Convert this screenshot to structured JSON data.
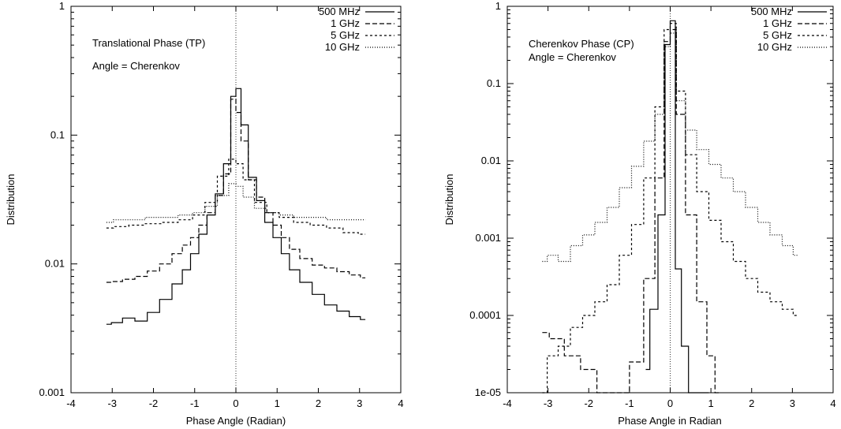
{
  "chart_data": [
    {
      "type": "line",
      "step": true,
      "xlabel": "Phase Angle (Radian)",
      "ylabel": "Distribution",
      "xlim": [
        -4,
        4
      ],
      "ylim": [
        0.001,
        1
      ],
      "yscale": "log",
      "xticks": [
        "-4",
        "-3",
        "-2",
        "-1",
        "0",
        "1",
        "2",
        "3",
        "4"
      ],
      "yticks": [
        {
          "v": 0.001,
          "label": "0.001"
        },
        {
          "v": 0.01,
          "label": "0.01"
        },
        {
          "v": 0.1,
          "label": "0.1"
        },
        {
          "v": 1,
          "label": "1"
        }
      ],
      "vertical_line_at": 0,
      "legend_position": "top-right",
      "annotations": [
        "Translational Phase (TP)",
        "Angle = Cherenkov"
      ],
      "series": [
        {
          "name": "500 MHz",
          "dash": "",
          "x": [
            -3.14,
            -2.9,
            -2.6,
            -2.3,
            -2.0,
            -1.7,
            -1.4,
            -1.2,
            -1.0,
            -0.8,
            -0.6,
            -0.4,
            -0.2,
            -0.05,
            0.05,
            0.2,
            0.4,
            0.6,
            0.8,
            1.0,
            1.2,
            1.4,
            1.7,
            2.0,
            2.3,
            2.6,
            2.9,
            3.14
          ],
          "y": [
            0.0034,
            0.0035,
            0.0038,
            0.0036,
            0.0042,
            0.0053,
            0.007,
            0.009,
            0.012,
            0.017,
            0.024,
            0.035,
            0.06,
            0.2,
            0.23,
            0.12,
            0.047,
            0.031,
            0.021,
            0.016,
            0.012,
            0.009,
            0.0072,
            0.0058,
            0.0048,
            0.0043,
            0.0039,
            0.0037
          ]
        },
        {
          "name": "1 GHz",
          "dash": "6,3",
          "x": [
            -3.14,
            -2.9,
            -2.6,
            -2.3,
            -2.0,
            -1.7,
            -1.4,
            -1.2,
            -1.0,
            -0.8,
            -0.6,
            -0.4,
            -0.2,
            -0.05,
            0.05,
            0.2,
            0.4,
            0.6,
            0.8,
            1.0,
            1.2,
            1.4,
            1.7,
            2.0,
            2.3,
            2.6,
            2.9,
            3.14
          ],
          "y": [
            0.0072,
            0.0073,
            0.0076,
            0.008,
            0.0088,
            0.01,
            0.012,
            0.014,
            0.016,
            0.02,
            0.025,
            0.034,
            0.05,
            0.19,
            0.15,
            0.09,
            0.045,
            0.033,
            0.025,
            0.02,
            0.016,
            0.013,
            0.011,
            0.0098,
            0.0093,
            0.0087,
            0.0082,
            0.0078
          ]
        },
        {
          "name": "5 GHz",
          "dash": "3,3",
          "x": [
            -3.14,
            -2.8,
            -2.4,
            -2.0,
            -1.6,
            -1.2,
            -0.9,
            -0.6,
            -0.3,
            -0.05,
            0.05,
            0.3,
            0.6,
            0.9,
            1.2,
            1.6,
            2.0,
            2.4,
            2.8,
            3.14
          ],
          "y": [
            0.019,
            0.0195,
            0.02,
            0.0205,
            0.021,
            0.022,
            0.024,
            0.03,
            0.048,
            0.065,
            0.06,
            0.045,
            0.03,
            0.025,
            0.023,
            0.021,
            0.02,
            0.019,
            0.0175,
            0.017
          ]
        },
        {
          "name": "10 GHz",
          "dash": "1,2",
          "x": [
            -3.14,
            -2.8,
            -2.4,
            -2.0,
            -1.6,
            -1.2,
            -0.9,
            -0.6,
            -0.3,
            -0.05,
            0.05,
            0.3,
            0.6,
            0.9,
            1.2,
            1.6,
            2.0,
            2.4,
            2.8,
            3.14
          ],
          "y": [
            0.021,
            0.022,
            0.022,
            0.023,
            0.023,
            0.024,
            0.025,
            0.028,
            0.034,
            0.042,
            0.04,
            0.033,
            0.027,
            0.025,
            0.024,
            0.023,
            0.023,
            0.022,
            0.022,
            0.022
          ]
        }
      ]
    },
    {
      "type": "line",
      "step": true,
      "xlabel": "Phase Angle in Radian",
      "ylabel": "Distribution",
      "xlim": [
        -4,
        4
      ],
      "ylim": [
        1e-05,
        1
      ],
      "yscale": "log",
      "xticks": [
        "-4",
        "-3",
        "-2",
        "-1",
        "0",
        "1",
        "2",
        "3",
        "4"
      ],
      "yticks": [
        {
          "v": 1e-05,
          "label": "1e-05"
        },
        {
          "v": 0.0001,
          "label": "0.0001"
        },
        {
          "v": 0.001,
          "label": "0.001"
        },
        {
          "v": 0.01,
          "label": "0.01"
        },
        {
          "v": 0.1,
          "label": "0.1"
        },
        {
          "v": 1,
          "label": "1"
        }
      ],
      "vertical_line_at": 0,
      "legend_position": "top-right",
      "annotations": [
        "Cherenkov Phase (CP)",
        "Angle = Cherenkov"
      ],
      "series": [
        {
          "name": "500 MHz",
          "dash": "",
          "x": [
            -0.6,
            -0.4,
            -0.2,
            -0.05,
            0.05,
            0.2,
            0.35,
            0.55,
            0.75,
            0.95
          ],
          "y": [
            2e-05,
            0.00012,
            0.002,
            0.32,
            0.65,
            0.0004,
            4e-05,
            1e-05,
            1e-05,
            1e-05
          ]
        },
        {
          "name": "1 GHz",
          "dash": "6,3",
          "x": [
            -3.14,
            -2.8,
            -2.4,
            -2.0,
            -1.6,
            -1.2,
            -0.8,
            -0.5,
            -0.25,
            -0.05,
            0.05,
            0.25,
            0.5,
            0.8,
            1.0,
            1.2
          ],
          "y": [
            6e-05,
            5e-05,
            3e-05,
            2e-05,
            1e-05,
            1e-05,
            2.5e-05,
            0.0003,
            0.006,
            0.35,
            0.5,
            0.04,
            0.002,
            0.00015,
            3e-05,
            1e-05
          ]
        },
        {
          "name": "5 GHz",
          "dash": "3,3",
          "x": [
            -3.14,
            -2.9,
            -2.6,
            -2.3,
            -2.0,
            -1.7,
            -1.4,
            -1.1,
            -0.8,
            -0.5,
            -0.25,
            -0.05,
            0.05,
            0.25,
            0.5,
            0.8,
            1.1,
            1.4,
            1.7,
            2.0,
            2.3,
            2.6,
            2.9,
            3.14
          ],
          "y": [
            1e-05,
            3e-05,
            4e-05,
            7e-05,
            0.0001,
            0.00015,
            0.00025,
            0.0006,
            0.0015,
            0.006,
            0.05,
            0.5,
            0.6,
            0.08,
            0.012,
            0.004,
            0.0017,
            0.0009,
            0.0005,
            0.0003,
            0.0002,
            0.00015,
            0.00012,
            0.0001
          ]
        },
        {
          "name": "10 GHz",
          "dash": "1,2",
          "x": [
            -3.14,
            -2.9,
            -2.6,
            -2.3,
            -2.0,
            -1.7,
            -1.4,
            -1.1,
            -0.8,
            -0.5,
            -0.25,
            -0.05,
            0.05,
            0.25,
            0.5,
            0.8,
            1.1,
            1.4,
            1.7,
            2.0,
            2.3,
            2.6,
            2.9,
            3.14
          ],
          "y": [
            0.0005,
            0.0006,
            0.0005,
            0.0008,
            0.0011,
            0.0016,
            0.0025,
            0.0045,
            0.0085,
            0.018,
            0.04,
            0.3,
            0.45,
            0.06,
            0.025,
            0.014,
            0.009,
            0.006,
            0.004,
            0.0025,
            0.0016,
            0.0011,
            0.0008,
            0.0006
          ]
        }
      ]
    }
  ]
}
